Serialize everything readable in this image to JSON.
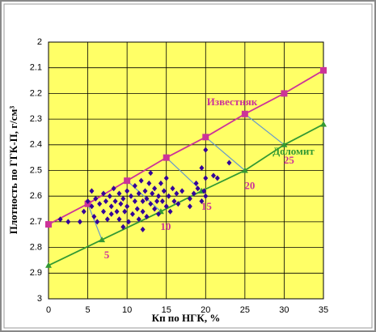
{
  "chart_data": {
    "type": "line",
    "x_label": "Кп по НГК, %",
    "y_label": "Плотность по ГГК-П, г/см³",
    "xlim": [
      0,
      35
    ],
    "xticks": [
      0,
      5,
      10,
      15,
      20,
      25,
      30,
      35
    ],
    "ylim": [
      2,
      3
    ],
    "yticks": [
      2,
      2.1,
      2.2,
      2.3,
      2.4,
      2.5,
      2.6,
      2.7,
      2.8,
      2.9,
      3
    ],
    "y_inverted": true,
    "grid": true,
    "background": "#ffff66",
    "series": [
      {
        "name": "Известняк",
        "color": "#cc3399",
        "marker": "square",
        "x": [
          0,
          5,
          10,
          15,
          20,
          25,
          30,
          35
        ],
        "values": [
          2.71,
          2.63,
          2.54,
          2.45,
          2.37,
          2.28,
          2.2,
          2.11
        ]
      },
      {
        "name": "Доломит",
        "color": "#339933",
        "marker": "triangle",
        "x": [
          0,
          6.8,
          14.3,
          19.5,
          25,
          30,
          35
        ],
        "values": [
          2.87,
          2.77,
          2.66,
          2.58,
          2.5,
          2.4,
          2.32
        ]
      },
      {
        "color": "#330099",
        "marker": "diamond",
        "scatter": true,
        "x": [
          1.5,
          2.5,
          4,
          4.5,
          5,
          5.5,
          5.5,
          5.8,
          6,
          6.2,
          6.5,
          7,
          7,
          7.3,
          7.5,
          7.8,
          8,
          8,
          8.3,
          8.5,
          8.7,
          9,
          9,
          9.2,
          9.5,
          9.7,
          10,
          10,
          10.2,
          10.5,
          10.7,
          11,
          11,
          11.3,
          11.5,
          11.5,
          11.8,
          12,
          12,
          12.3,
          12.5,
          12.5,
          12.8,
          13,
          13,
          13.2,
          13.5,
          13.5,
          13.8,
          14,
          14,
          14.3,
          14.5,
          14.7,
          15,
          15,
          15.3,
          15.5,
          15.8,
          16,
          16.3,
          16.5,
          17,
          18,
          18.5,
          18.8,
          19,
          19.5,
          19.5,
          19.8,
          20,
          20,
          20,
          21,
          21.5,
          23,
          12,
          9.5,
          18
        ],
        "values": [
          2.69,
          2.7,
          2.7,
          2.66,
          2.62,
          2.58,
          2.64,
          2.68,
          2.61,
          2.7,
          2.63,
          2.59,
          2.66,
          2.62,
          2.69,
          2.6,
          2.64,
          2.67,
          2.57,
          2.62,
          2.66,
          2.59,
          2.69,
          2.63,
          2.61,
          2.66,
          2.58,
          2.64,
          2.7,
          2.6,
          2.67,
          2.56,
          2.62,
          2.65,
          2.59,
          2.69,
          2.54,
          2.62,
          2.66,
          2.58,
          2.61,
          2.68,
          2.55,
          2.63,
          2.51,
          2.59,
          2.65,
          2.57,
          2.62,
          2.6,
          2.67,
          2.55,
          2.62,
          2.58,
          2.64,
          2.53,
          2.6,
          2.66,
          2.57,
          2.62,
          2.59,
          2.63,
          2.58,
          2.61,
          2.59,
          2.55,
          2.57,
          2.49,
          2.62,
          2.58,
          2.42,
          2.53,
          2.6,
          2.52,
          2.53,
          2.47,
          2.73,
          2.72,
          2.64
        ]
      }
    ],
    "tie_color": "#6699cc",
    "tie_labels": [
      "5",
      "10",
      "15",
      "20",
      "25"
    ]
  }
}
